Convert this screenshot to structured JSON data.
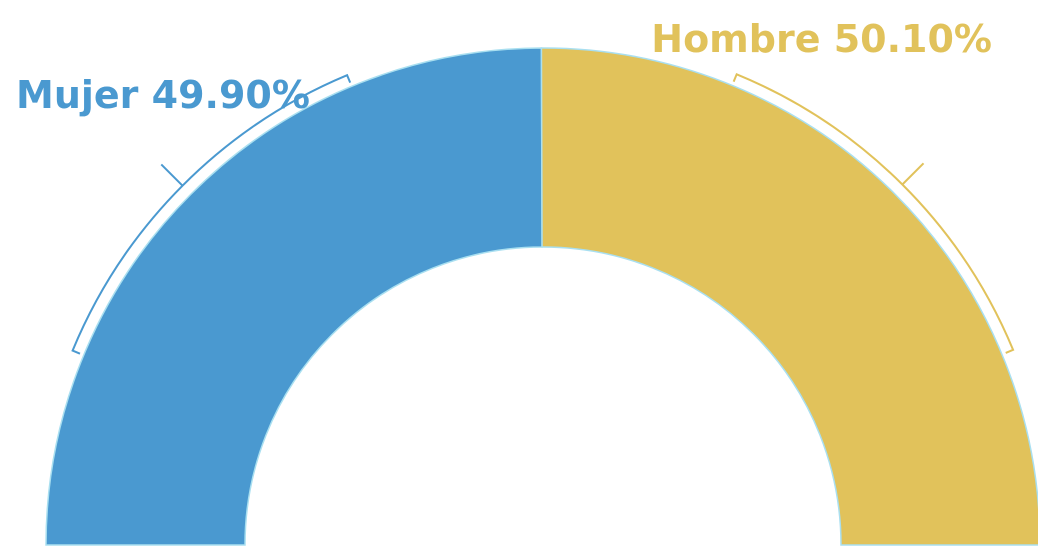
{
  "chart_data": {
    "type": "pie",
    "variant": "semi-donut",
    "slices": [
      {
        "category": "Mujer",
        "value": 49.9,
        "label": "Mujer 49.90%",
        "color": "#4a99d0"
      },
      {
        "category": "Hombre",
        "value": 50.1,
        "label": "Hombre 50.10%",
        "color": "#e1c25b"
      }
    ],
    "unit": "%",
    "legend": "none",
    "separator_color": "#a9dff0"
  }
}
